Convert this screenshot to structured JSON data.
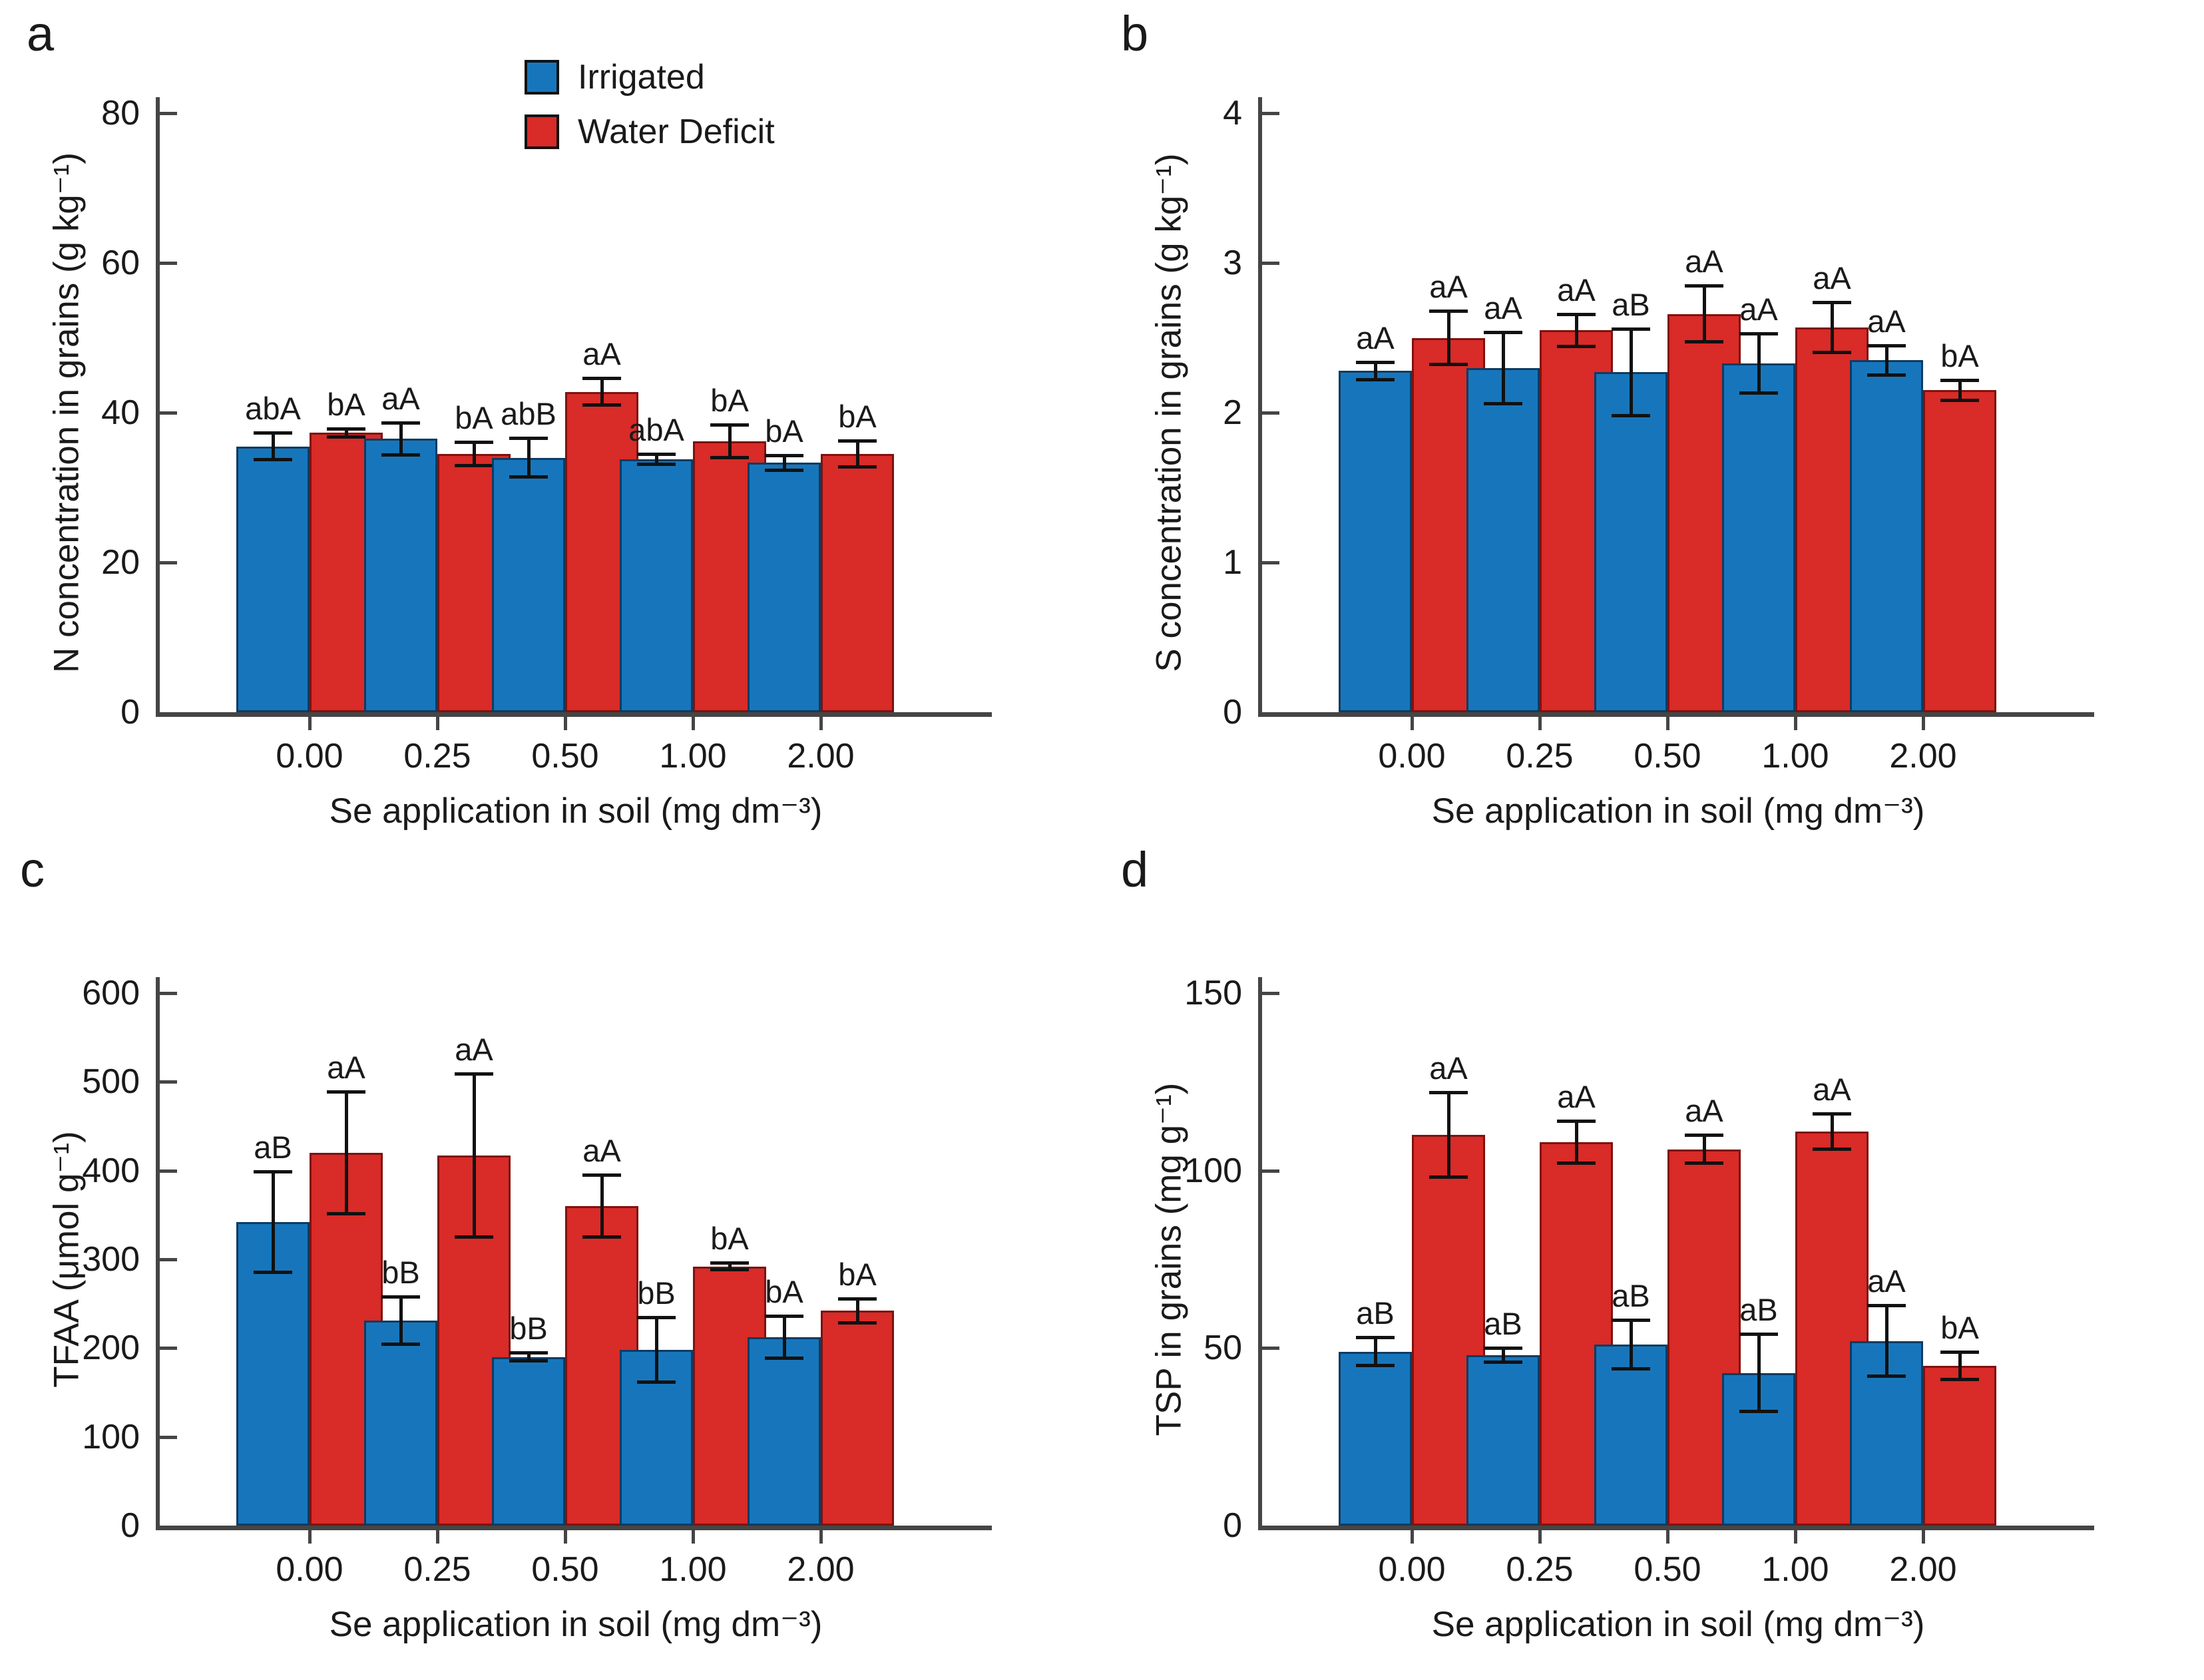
{
  "figure": {
    "legend": {
      "items": [
        {
          "label": "Irrigated",
          "color": "#1776BB"
        },
        {
          "label": "Water Deficit",
          "color": "#D92B27"
        }
      ]
    },
    "x_title": "Se application in soil (mg dm⁻³)",
    "categories": [
      "0.00",
      "0.25",
      "0.50",
      "1.00",
      "2.00"
    ]
  },
  "chart_data": [
    {
      "panel": "a",
      "type": "bar",
      "title": "",
      "xlabel": "Se application in soil (mg dm⁻³)",
      "ylabel": "N concentration in grains (g kg⁻¹)",
      "ylim": [
        0,
        80
      ],
      "ytick_step": 20,
      "grid": false,
      "legend_position": "top-center",
      "categories": [
        "0.00",
        "0.25",
        "0.50",
        "1.00",
        "2.00"
      ],
      "series": [
        {
          "name": "Irrigated",
          "values": [
            35.5,
            36.5,
            34.0,
            33.8,
            33.3
          ],
          "errors": [
            1.8,
            2.2,
            2.6,
            0.7,
            1.0
          ],
          "letters": [
            "abA",
            "aA",
            "abB",
            "abA",
            "bA"
          ]
        },
        {
          "name": "Water Deficit",
          "values": [
            37.3,
            34.5,
            42.8,
            36.2,
            34.5
          ],
          "errors": [
            0.6,
            1.6,
            1.8,
            2.2,
            1.8
          ],
          "letters": [
            "bA",
            "bA",
            "aA",
            "bA",
            "bA"
          ]
        }
      ]
    },
    {
      "panel": "b",
      "type": "bar",
      "title": "",
      "xlabel": "Se application in soil (mg dm⁻³)",
      "ylabel": "S concentration in grains (g kg⁻¹)",
      "ylim": [
        0,
        4
      ],
      "ytick_step": 1,
      "grid": false,
      "categories": [
        "0.00",
        "0.25",
        "0.50",
        "1.00",
        "2.00"
      ],
      "series": [
        {
          "name": "Irrigated",
          "values": [
            2.28,
            2.3,
            2.27,
            2.33,
            2.35
          ],
          "errors": [
            0.06,
            0.24,
            0.29,
            0.2,
            0.1
          ],
          "letters": [
            "aA",
            "aA",
            "aB",
            "aA",
            "aA"
          ]
        },
        {
          "name": "Water Deficit",
          "values": [
            2.5,
            2.55,
            2.66,
            2.57,
            2.15
          ],
          "errors": [
            0.18,
            0.11,
            0.19,
            0.17,
            0.07
          ],
          "letters": [
            "aA",
            "aA",
            "aA",
            "aA",
            "bA"
          ]
        }
      ]
    },
    {
      "panel": "c",
      "type": "bar",
      "title": "",
      "xlabel": "Se application in soil (mg dm⁻³)",
      "ylabel": "TFAA (μmol g⁻¹)",
      "ylim": [
        0,
        600
      ],
      "ytick_step": 100,
      "grid": false,
      "categories": [
        "0.00",
        "0.25",
        "0.50",
        "1.00",
        "2.00"
      ],
      "series": [
        {
          "name": "Irrigated",
          "values": [
            342,
            231,
            190,
            198,
            212
          ],
          "errors": [
            57,
            27,
            5,
            37,
            24
          ],
          "letters": [
            "aB",
            "bB",
            "bB",
            "bB",
            "bA"
          ]
        },
        {
          "name": "Water Deficit",
          "values": [
            420,
            417,
            360,
            292,
            242
          ],
          "errors": [
            69,
            92,
            35,
            4,
            14
          ],
          "letters": [
            "aA",
            "aA",
            "aA",
            "bA",
            "bA"
          ]
        }
      ]
    },
    {
      "panel": "d",
      "type": "bar",
      "title": "",
      "xlabel": "Se application in soil (mg dm⁻³)",
      "ylabel": "TSP in grains (mg g⁻¹)",
      "ylim": [
        0,
        150
      ],
      "ytick_step": 50,
      "grid": false,
      "categories": [
        "0.00",
        "0.25",
        "0.50",
        "1.00",
        "2.00"
      ],
      "series": [
        {
          "name": "Irrigated",
          "values": [
            49,
            48,
            51,
            43,
            52
          ],
          "errors": [
            4,
            2,
            7,
            11,
            10
          ],
          "letters": [
            "aB",
            "aB",
            "aB",
            "aB",
            "aA"
          ]
        },
        {
          "name": "Water Deficit",
          "values": [
            110,
            108,
            106,
            111,
            45
          ],
          "errors": [
            12,
            6,
            4,
            5,
            4
          ],
          "letters": [
            "aA",
            "aA",
            "aA",
            "aA",
            "bA"
          ]
        }
      ]
    }
  ]
}
